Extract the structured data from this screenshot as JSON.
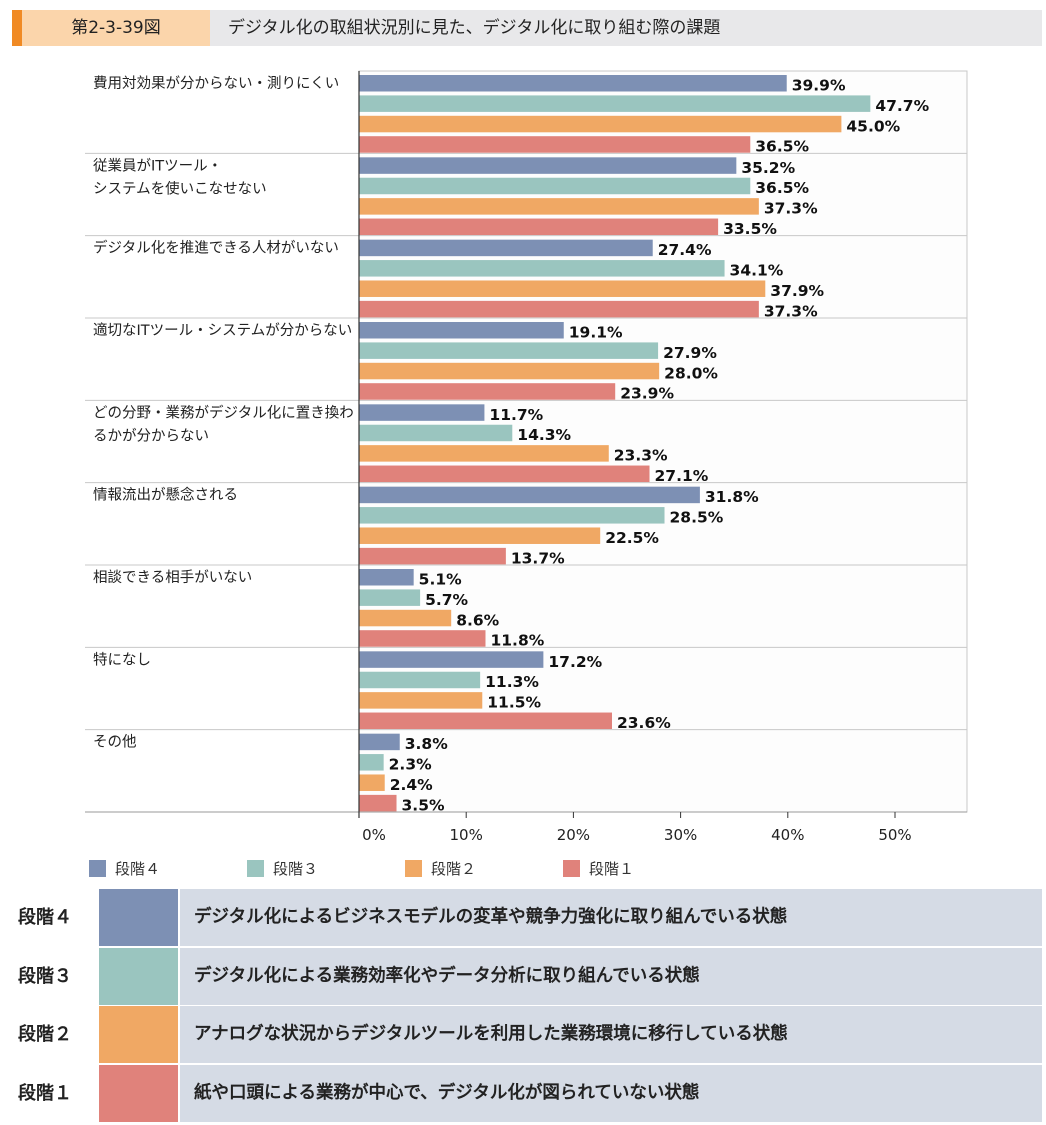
{
  "header": {
    "figure_number": "第2-3-39図",
    "title": "デジタル化の取組状況別に見た、デジタル化に取り組む際の課題"
  },
  "colors": {
    "stage4": "#7d90b4",
    "stage3": "#9ac5bf",
    "stage2": "#f0a864",
    "stage1": "#e0827b",
    "accent": "#f08a24"
  },
  "legend": [
    {
      "label": "段階４",
      "color_key": "stage4"
    },
    {
      "label": "段階３",
      "color_key": "stage3"
    },
    {
      "label": "段階２",
      "color_key": "stage2"
    },
    {
      "label": "段階１",
      "color_key": "stage1"
    }
  ],
  "chart_data": {
    "type": "bar",
    "orientation": "horizontal",
    "categories": [
      [
        "費用対効果が分からない・測りにくい"
      ],
      [
        "従業員がITツール・",
        "システムを使いこなせない"
      ],
      [
        "デジタル化を推進できる人材がいない"
      ],
      [
        "適切なITツール・システムが分からない"
      ],
      [
        "どの分野・業務がデジタル化に置き換わ",
        "るかが分からない"
      ],
      [
        "情報流出が懸念される"
      ],
      [
        "相談できる相手がいない"
      ],
      [
        "特になし"
      ],
      [
        "その他"
      ]
    ],
    "series": [
      {
        "name": "段階４",
        "values": [
          39.9,
          35.2,
          27.4,
          19.1,
          11.7,
          31.8,
          5.1,
          17.2,
          3.8
        ]
      },
      {
        "name": "段階３",
        "values": [
          47.7,
          36.5,
          34.1,
          27.9,
          14.3,
          28.5,
          5.7,
          11.3,
          2.3
        ]
      },
      {
        "name": "段階２",
        "values": [
          45.0,
          37.3,
          37.9,
          28.0,
          23.3,
          22.5,
          8.6,
          11.5,
          2.4
        ]
      },
      {
        "name": "段階１",
        "values": [
          36.5,
          33.5,
          37.3,
          23.9,
          27.1,
          13.7,
          11.8,
          23.6,
          3.5
        ]
      }
    ],
    "xlim": [
      0,
      50
    ],
    "xticks": [
      "0%",
      "10%",
      "20%",
      "30%",
      "40%",
      "50%"
    ],
    "grid": false,
    "legend_position": "bottom"
  },
  "definitions": [
    {
      "stage": "段階４",
      "color_key": "stage4",
      "text": "デジタル化によるビジネスモデルの変革や競争力強化に取り組んでいる状態"
    },
    {
      "stage": "段階３",
      "color_key": "stage3",
      "text": "デジタル化による業務効率化やデータ分析に取り組んでいる状態"
    },
    {
      "stage": "段階２",
      "color_key": "stage2",
      "text": "アナログな状況からデジタルツールを利用した業務環境に移行している状態"
    },
    {
      "stage": "段階１",
      "color_key": "stage1",
      "text": "紙や口頭による業務が中心で、デジタル化が図られていない状態"
    }
  ]
}
